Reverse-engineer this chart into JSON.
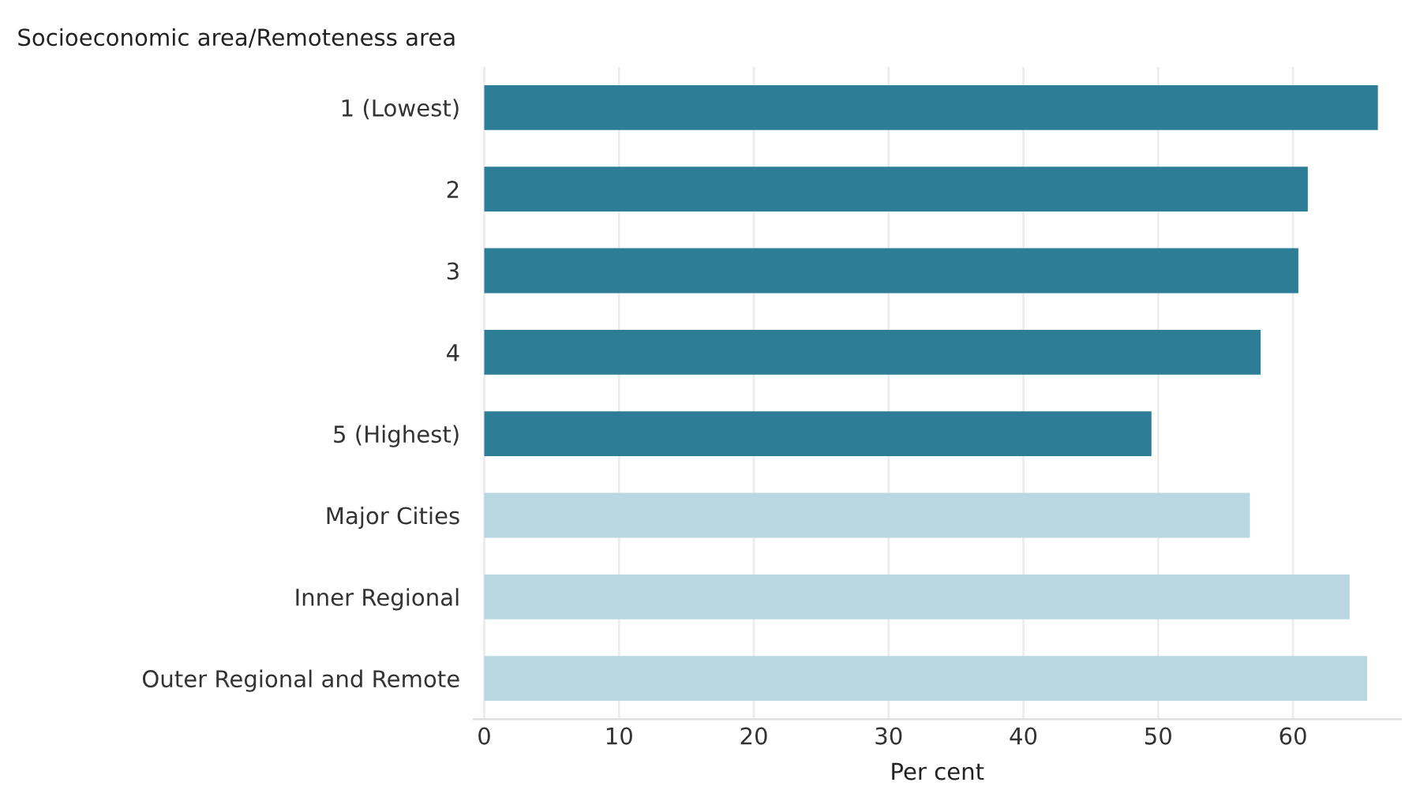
{
  "chart_data": {
    "type": "bar",
    "orientation": "horizontal",
    "ylabel": "Socioeconomic area/Remoteness area",
    "xlabel": "Per cent",
    "categories": [
      "1 (Lowest)",
      "2",
      "3",
      "4",
      "5 (Highest)",
      "Major Cities",
      "Inner Regional",
      "Outer Regional and Remote"
    ],
    "values": [
      66.3,
      61.1,
      60.4,
      57.6,
      49.5,
      56.8,
      64.2,
      65.5
    ],
    "colors": [
      "#2e7d97",
      "#2e7d97",
      "#2e7d97",
      "#2e7d97",
      "#2e7d97",
      "#b8d7e0",
      "#b8d7e0",
      "#b8d7e0"
    ],
    "xlim": [
      -0.8,
      68
    ],
    "xticks": [
      0,
      10,
      20,
      30,
      40,
      50,
      60
    ],
    "grid": "x",
    "legend": false
  }
}
